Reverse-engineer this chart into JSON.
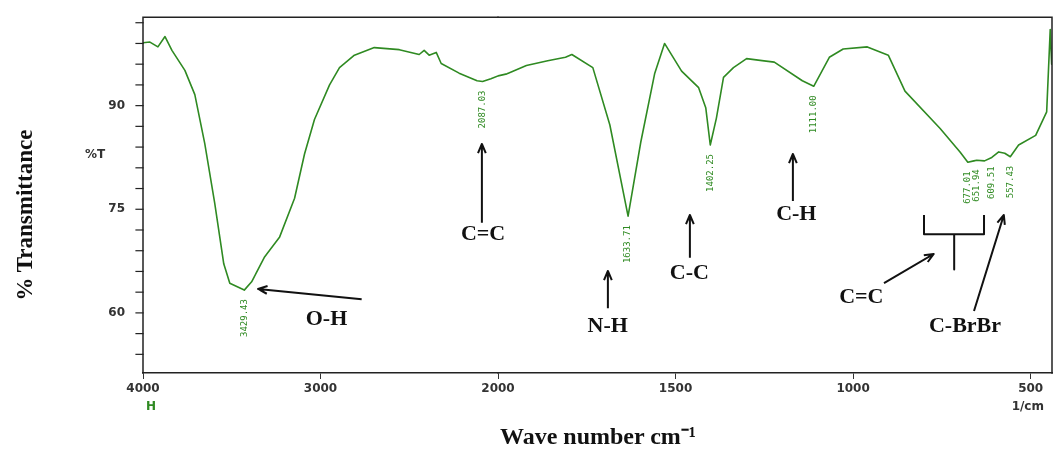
{
  "chart_data": [
    {
      "type": "line",
      "ylabel": "% Transmittance",
      "xlim": [
        4000,
        2000
      ],
      "xticks": [
        4000,
        3000,
        2000
      ],
      "ylim": [
        51.3,
        102.8
      ],
      "yticks": [
        {
          "value": 54,
          "label": null
        },
        {
          "value": 57,
          "label": null
        },
        60,
        {
          "value": 63,
          "label": null
        },
        {
          "value": 66,
          "label": null
        },
        {
          "value": 69,
          "label": null
        },
        {
          "value": 72,
          "label": null
        },
        75,
        {
          "value": 78,
          "label": null
        },
        {
          "value": 81,
          "label": null
        },
        {
          "value": 84,
          "label": null
        },
        {
          "value": 87,
          "label": null
        },
        90,
        {
          "value": 93,
          "label": null
        },
        {
          "value": 96,
          "label": null
        },
        {
          "value": 99,
          "label": null
        },
        {
          "value": 102,
          "label": null
        }
      ],
      "grid": false,
      "legend": false,
      "marker": "none",
      "line_style": "solid",
      "series": [
        {
          "color": "#2f8a22",
          "x": [
            4000,
            3961,
            3916,
            3876,
            3837,
            3764,
            3708,
            3652,
            3596,
            3545,
            3511,
            3429.43,
            3388,
            3315,
            3230,
            3146,
            3090,
            3034,
            2949,
            2893,
            2809,
            2697,
            2556,
            2444,
            2416,
            2388,
            2348,
            2320,
            2219,
            2118,
            2087.03,
            2040,
            2000
          ],
          "values": [
            99.1,
            99.2,
            98.5,
            100,
            98,
            95.1,
            91.6,
            84.5,
            75.9,
            67.1,
            64.3,
            63.3,
            64.5,
            68.1,
            71,
            76.6,
            83,
            88,
            93,
            95.5,
            97.3,
            98.4,
            98.1,
            97.4,
            98,
            97.3,
            97.7,
            96.1,
            94.7,
            93.6,
            93.5,
            93.9,
            94.3
          ]
        }
      ],
      "annotations": [
        "%T",
        "H",
        "O-H",
        "C=C",
        {
          "text": "3429.43",
          "x": 3429.43,
          "y": 63.3
        },
        {
          "text": "2087.03",
          "x": 2087.03,
          "y": 93.5
        }
      ]
    },
    {
      "type": "line",
      "xlabel": "Wave number cm⁻¹",
      "xlim": [
        2000,
        440
      ],
      "xticks": [
        1500,
        1000,
        500
      ],
      "ylim": [
        51.3,
        102.8
      ],
      "yticks": [
        60,
        75,
        90
      ],
      "tick_labels": "x",
      "grid": false,
      "legend": false,
      "marker": "none",
      "line_style": "solid",
      "series": [
        {
          "color": "#2f8a22",
          "x": [
            2000,
            1975,
            1920,
            1860,
            1810,
            1792,
            1733,
            1685,
            1633.71,
            1598,
            1559,
            1531,
            1483,
            1435,
            1415,
            1402.25,
            1385,
            1365,
            1337,
            1300,
            1222,
            1143,
            1111.0,
            1067,
            1028,
            960,
            901,
            854,
            755,
            699,
            677.01,
            660,
            651.94,
            630,
            609.51,
            590,
            573,
            557.43,
            534,
            486,
            455,
            445,
            441
          ],
          "values": [
            94.3,
            94.6,
            95.8,
            96.5,
            97,
            97.4,
            95.5,
            87.2,
            74.0,
            84.7,
            94.6,
            99,
            95,
            92.6,
            89.7,
            84.3,
            88.2,
            94.1,
            95.5,
            96.8,
            96.3,
            93.6,
            92.8,
            97,
            98.2,
            98.5,
            97.3,
            92.1,
            86.7,
            83.3,
            81.8,
            82,
            82.1,
            82,
            82.5,
            83.3,
            83.1,
            82.6,
            84.3,
            85.7,
            89.1,
            101,
            96
          ]
        }
      ],
      "annotations": [
        "1/cm",
        "N-H",
        "C-C",
        "C-H",
        "C=C",
        "C-BrBr",
        {
          "text": "1633.71",
          "x": 1633.71,
          "y": 74.0
        },
        {
          "text": "1402.25",
          "x": 1402.25,
          "y": 84.3
        },
        {
          "text": "1111.00",
          "x": 1111.0,
          "y": 92.8
        },
        {
          "text": "677.01",
          "x": 677.01,
          "y": 81.8
        },
        {
          "text": "651.94",
          "x": 651.94,
          "y": 82.1
        },
        {
          "text": "609.51",
          "x": 609.51,
          "y": 82.5
        },
        {
          "text": "557.43",
          "x": 557.43,
          "y": 82.6
        }
      ]
    }
  ]
}
